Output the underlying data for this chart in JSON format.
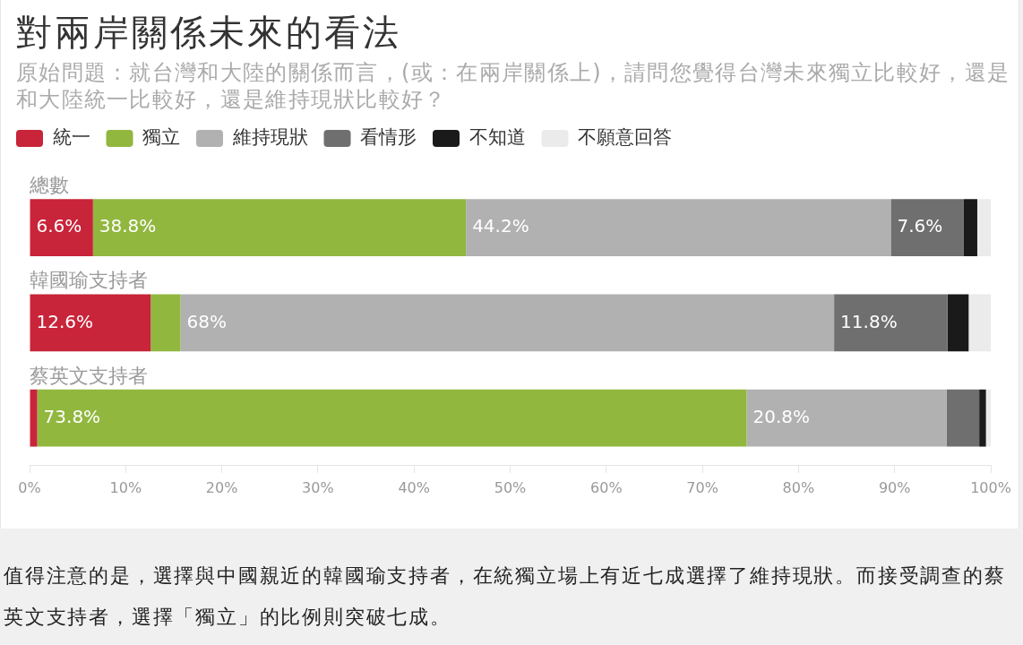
{
  "chart_data": {
    "type": "bar",
    "orientation": "horizontal",
    "stacked": true,
    "title": "對兩岸關係未來的看法",
    "subtitle": "原始問題：就台灣和大陸的關係而言，(或：在兩岸關係上)，請問您覺得台灣未來獨立比較好，還是和大陸統一比較好，還是維持現狀比較好？",
    "categories": [
      "總數",
      "韓國瑜支持者",
      "蔡英文支持者"
    ],
    "series": [
      {
        "name": "統一",
        "color": "#c8243a",
        "values": [
          6.6,
          12.6,
          0.8
        ],
        "value_labels": [
          "6.6%",
          "12.6%",
          null
        ]
      },
      {
        "name": "獨立",
        "color": "#91b73f",
        "values": [
          38.8,
          3.1,
          73.8
        ],
        "value_labels": [
          "38.8%",
          null,
          "73.8%"
        ]
      },
      {
        "name": "維持現狀",
        "color": "#b1b1b1",
        "values": [
          44.2,
          68,
          20.8
        ],
        "value_labels": [
          "44.2%",
          "68%",
          "20.8%"
        ]
      },
      {
        "name": "看情形",
        "color": "#6f6f6f",
        "values": [
          7.6,
          11.8,
          3.4
        ],
        "value_labels": [
          "7.6%",
          "11.8%",
          null
        ]
      },
      {
        "name": "不知道",
        "color": "#1a1a1a",
        "values": [
          1.4,
          2.2,
          0.7
        ]
      },
      {
        "name": "不願意回答",
        "color": "#ebebeb",
        "values": [
          1.4,
          2.3,
          0.5
        ]
      }
    ],
    "xlim": [
      0,
      100
    ],
    "xticks": [
      {
        "value": 0,
        "label": "0%"
      },
      {
        "value": 10,
        "label": "10%"
      },
      {
        "value": 20,
        "label": "20%"
      },
      {
        "value": 30,
        "label": "30%"
      },
      {
        "value": 40,
        "label": "40%"
      },
      {
        "value": 50,
        "label": "50%"
      },
      {
        "value": 60,
        "label": "60%"
      },
      {
        "value": 70,
        "label": "70%"
      },
      {
        "value": 80,
        "label": "80%"
      },
      {
        "value": 90,
        "label": "90%"
      },
      {
        "value": 100,
        "label": "100%"
      }
    ],
    "grid": false,
    "legend": "top left",
    "annotations": [
      "值得注意的是，選擇與中國親近的韓國瑜支持者，在統獨立場上有近七成選擇了維持現狀。而接受調查的蔡英文支持者，選擇「獨立」的比例則突破七成。"
    ]
  }
}
